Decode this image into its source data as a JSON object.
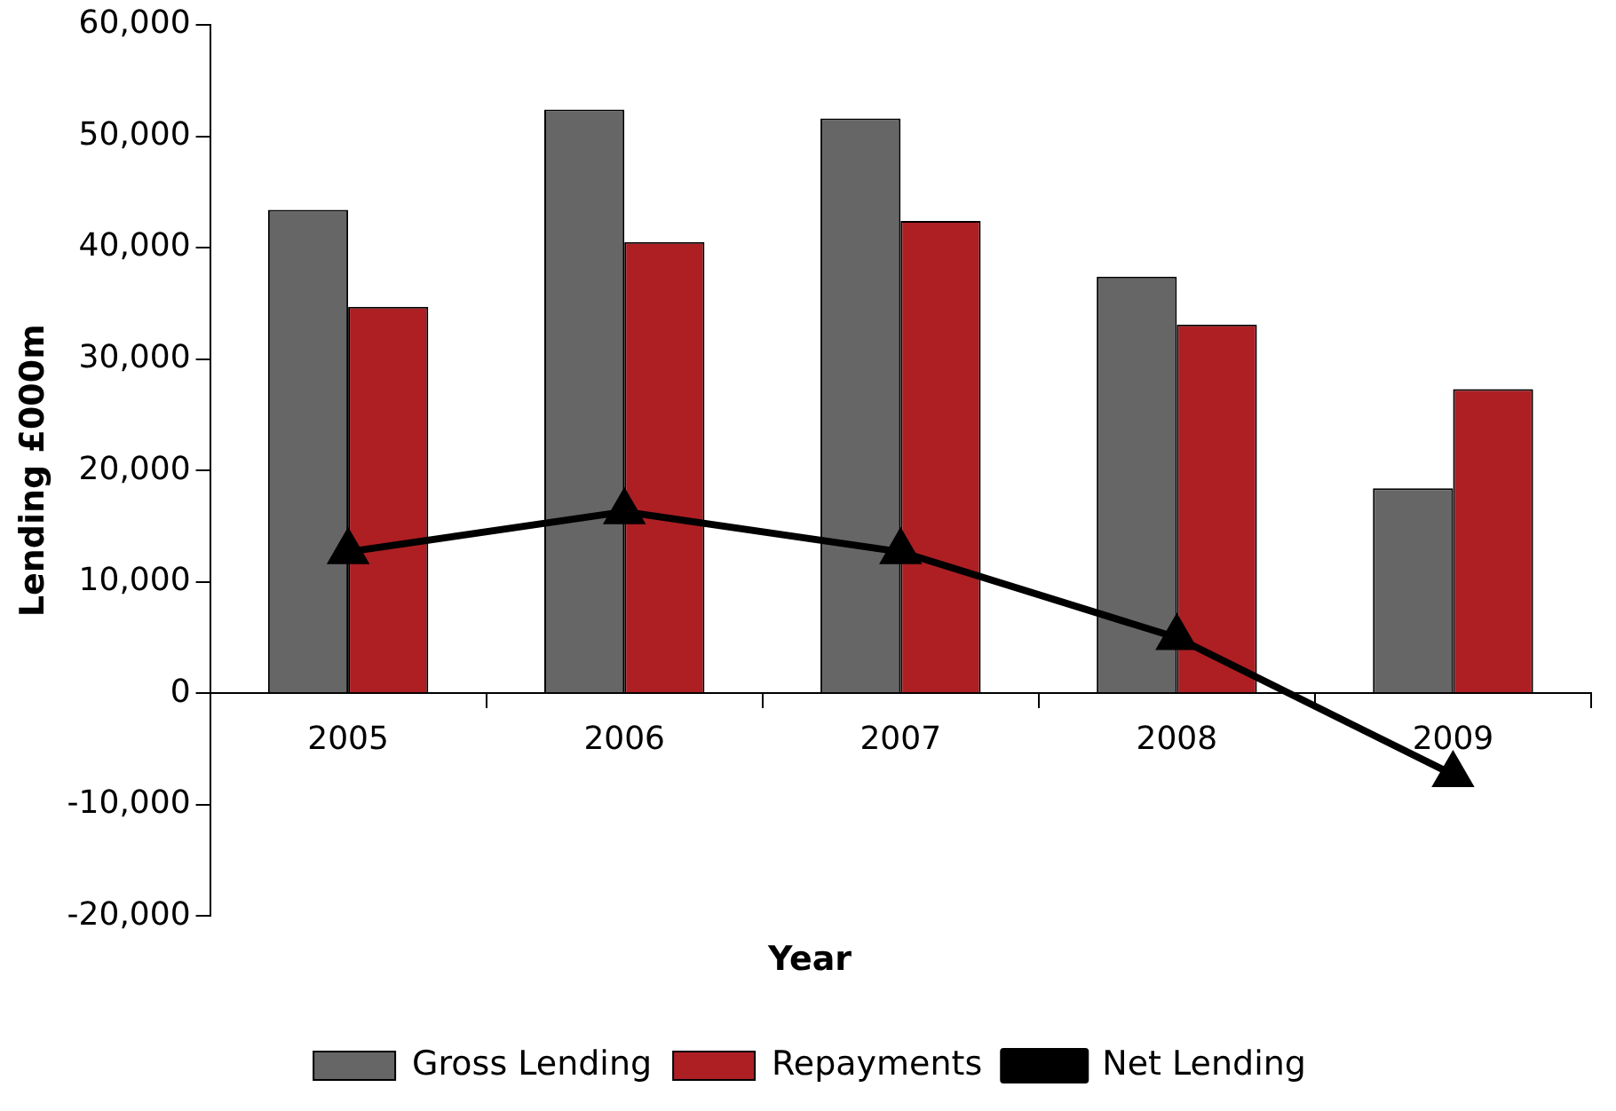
{
  "chart_data": {
    "type": "bar",
    "xlabel": "Year",
    "ylabel": "Lending £000m",
    "categories": [
      "2005",
      "2006",
      "2007",
      "2008",
      "2009"
    ],
    "series": [
      {
        "name": "Gross Lending",
        "color": "#666666",
        "values": [
          43400,
          52400,
          51600,
          37400,
          18400
        ]
      },
      {
        "name": "Repayments",
        "color": "#ad1f23",
        "values": [
          34700,
          40500,
          42400,
          33100,
          27300
        ]
      },
      {
        "name": "Net Lending",
        "type": "line",
        "color": "#000000",
        "values": [
          12700,
          16300,
          12700,
          5000,
          -7300
        ]
      }
    ],
    "ylim": [
      -20000,
      60000
    ],
    "yticks": [
      {
        "value": -20000,
        "label": "-20,000"
      },
      {
        "value": -10000,
        "label": "-10,000"
      },
      {
        "value": 0,
        "label": "0"
      },
      {
        "value": 10000,
        "label": "10,000"
      },
      {
        "value": 20000,
        "label": "20,000"
      },
      {
        "value": 30000,
        "label": "30,000"
      },
      {
        "value": 40000,
        "label": "40,000"
      },
      {
        "value": 50000,
        "label": "50,000"
      },
      {
        "value": 60000,
        "label": "60,000"
      }
    ],
    "grid": false,
    "legend": "bottom",
    "marker": "triangle",
    "line_style": "solid"
  }
}
